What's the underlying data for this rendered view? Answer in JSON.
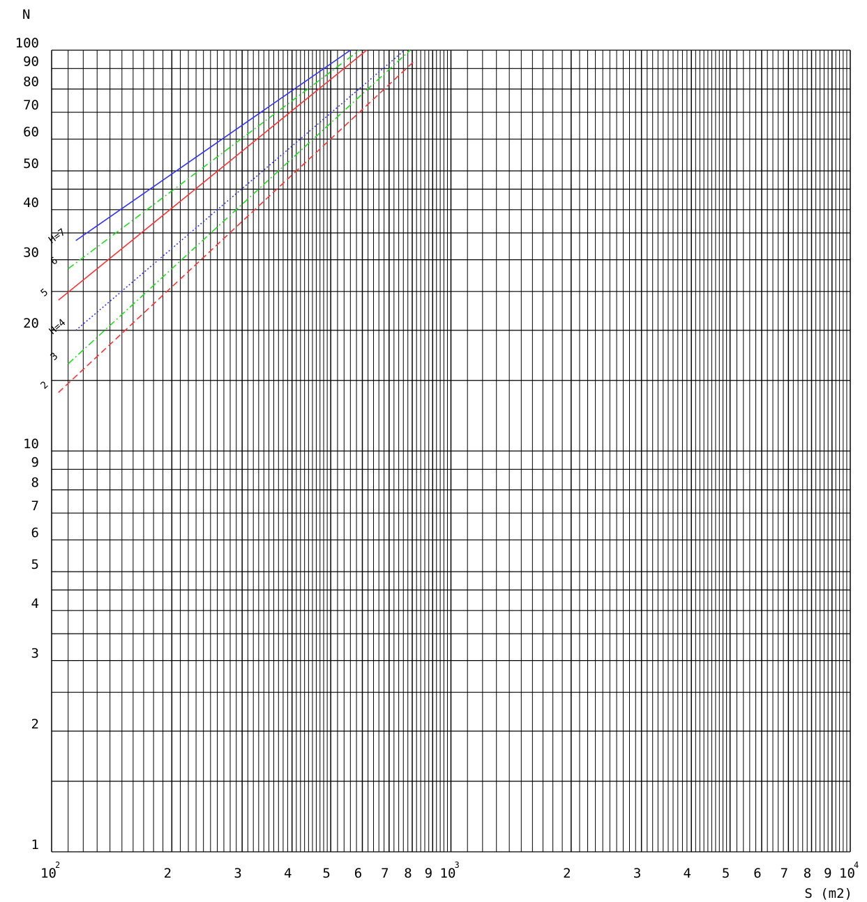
{
  "chart_data": {
    "type": "line",
    "xscale": "log",
    "yscale": "log",
    "xlabel": "S (m2)",
    "ylabel": "N",
    "xlim": [
      100,
      10000
    ],
    "ylim": [
      1,
      100
    ],
    "grid": true,
    "x_tick_labels": [
      {
        "value": 100,
        "base": "10",
        "exp": "2"
      },
      {
        "value": 200,
        "label": "2"
      },
      {
        "value": 300,
        "label": "3"
      },
      {
        "value": 400,
        "label": "4"
      },
      {
        "value": 500,
        "label": "5"
      },
      {
        "value": 600,
        "label": "6"
      },
      {
        "value": 700,
        "label": "7"
      },
      {
        "value": 800,
        "label": "8"
      },
      {
        "value": 900,
        "label": "9"
      },
      {
        "value": 1000,
        "base": "10",
        "exp": "3"
      },
      {
        "value": 2000,
        "label": "2"
      },
      {
        "value": 3000,
        "label": "3"
      },
      {
        "value": 4000,
        "label": "4"
      },
      {
        "value": 5000,
        "label": "5"
      },
      {
        "value": 6000,
        "label": "6"
      },
      {
        "value": 7000,
        "label": "7"
      },
      {
        "value": 8000,
        "label": "8"
      },
      {
        "value": 9000,
        "label": "9"
      },
      {
        "value": 10000,
        "base": "10",
        "exp": "4"
      }
    ],
    "y_tick_labels": [
      {
        "value": 1,
        "label": "1"
      },
      {
        "value": 2,
        "label": "2"
      },
      {
        "value": 3,
        "label": "3"
      },
      {
        "value": 4,
        "label": "4"
      },
      {
        "value": 5,
        "label": "5"
      },
      {
        "value": 6,
        "label": "6"
      },
      {
        "value": 7,
        "label": "7"
      },
      {
        "value": 8,
        "label": "8"
      },
      {
        "value": 9,
        "label": "9"
      },
      {
        "value": 10,
        "label": "10"
      },
      {
        "value": 20,
        "label": "20"
      },
      {
        "value": 30,
        "label": "30"
      },
      {
        "value": 40,
        "label": "40"
      },
      {
        "value": 50,
        "label": "50"
      },
      {
        "value": 60,
        "label": "60"
      },
      {
        "value": 70,
        "label": "70"
      },
      {
        "value": 80,
        "label": "80"
      },
      {
        "value": 90,
        "label": "90"
      },
      {
        "value": 100,
        "label": "100"
      }
    ],
    "series": [
      {
        "label": "H=7",
        "color": "#3333ff",
        "style": "solid",
        "x": [
          115,
          560
        ],
        "y": [
          33.5,
          100
        ]
      },
      {
        "label": "6",
        "color": "#22dd22",
        "style": "dashdot",
        "x": [
          110,
          590
        ],
        "y": [
          28.5,
          100
        ]
      },
      {
        "label": "5",
        "color": "#ff3333",
        "style": "solid",
        "x": [
          104,
          615
        ],
        "y": [
          23.8,
          100
        ]
      },
      {
        "label": "H=4",
        "color": "#3333ff",
        "style": "dotted",
        "x": [
          115,
          765
        ],
        "y": [
          20,
          100
        ]
      },
      {
        "label": "3",
        "color": "#22dd22",
        "style": "dashdot",
        "x": [
          110,
          790
        ],
        "y": [
          16.5,
          100
        ]
      },
      {
        "label": "2",
        "color": "#ff3333",
        "style": "dashed",
        "x": [
          104,
          810
        ],
        "y": [
          14,
          94
        ]
      }
    ]
  }
}
